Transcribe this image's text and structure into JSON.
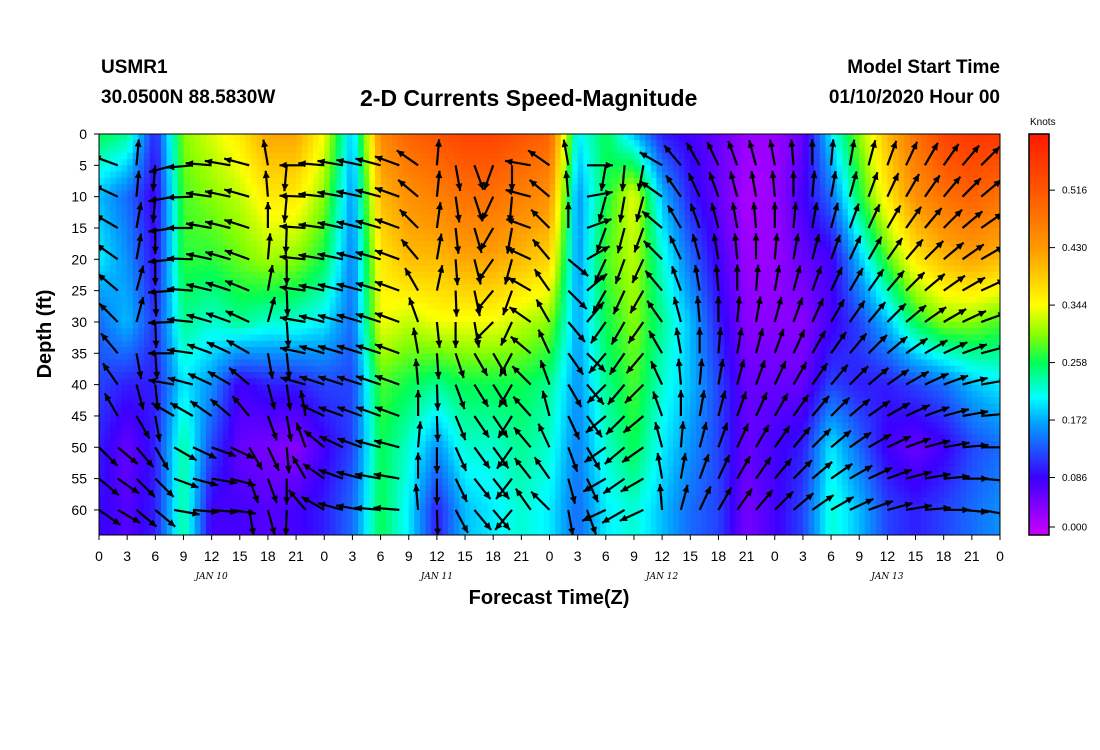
{
  "header": {
    "station": "USMR1",
    "coords": "30.0500N 88.5830W",
    "title": "2-D Currents Speed-Magnitude",
    "start_label": "Model Start Time",
    "start_value": "01/10/2020 Hour 00"
  },
  "chart_data": {
    "type": "heatmap",
    "title": "2-D Currents Speed-Magnitude",
    "xlabel": "Forecast Time(Z)",
    "ylabel": "Depth (ft)",
    "x_range_hours": [
      0,
      96
    ],
    "y_range_ft": [
      0,
      64
    ],
    "x_ticks": [
      {
        "h": 0,
        "label": "0"
      },
      {
        "h": 3,
        "label": "3"
      },
      {
        "h": 6,
        "label": "6"
      },
      {
        "h": 9,
        "label": "9"
      },
      {
        "h": 12,
        "label": "12"
      },
      {
        "h": 15,
        "label": "15"
      },
      {
        "h": 18,
        "label": "18"
      },
      {
        "h": 21,
        "label": "21"
      },
      {
        "h": 24,
        "label": "0"
      },
      {
        "h": 27,
        "label": "3"
      },
      {
        "h": 30,
        "label": "6"
      },
      {
        "h": 33,
        "label": "9"
      },
      {
        "h": 36,
        "label": "12"
      },
      {
        "h": 39,
        "label": "15"
      },
      {
        "h": 42,
        "label": "18"
      },
      {
        "h": 45,
        "label": "21"
      },
      {
        "h": 48,
        "label": "0"
      },
      {
        "h": 51,
        "label": "3"
      },
      {
        "h": 54,
        "label": "6"
      },
      {
        "h": 57,
        "label": "9"
      },
      {
        "h": 60,
        "label": "12"
      },
      {
        "h": 63,
        "label": "15"
      },
      {
        "h": 66,
        "label": "18"
      },
      {
        "h": 69,
        "label": "21"
      },
      {
        "h": 72,
        "label": "0"
      },
      {
        "h": 75,
        "label": "3"
      },
      {
        "h": 78,
        "label": "6"
      },
      {
        "h": 81,
        "label": "9"
      },
      {
        "h": 84,
        "label": "12"
      },
      {
        "h": 87,
        "label": "15"
      },
      {
        "h": 90,
        "label": "18"
      },
      {
        "h": 93,
        "label": "21"
      },
      {
        "h": 96,
        "label": "0"
      }
    ],
    "day_labels": [
      {
        "h": 12,
        "label": "JAN 10"
      },
      {
        "h": 36,
        "label": "JAN 11"
      },
      {
        "h": 60,
        "label": "JAN 12"
      },
      {
        "h": 84,
        "label": "JAN 13"
      }
    ],
    "y_ticks": [
      0,
      5,
      10,
      15,
      20,
      25,
      30,
      35,
      40,
      45,
      50,
      55,
      60
    ],
    "colorbar": {
      "unit": "Knots",
      "min": 0.0,
      "max": 0.6,
      "tick_values": [
        0.0,
        0.086,
        0.172,
        0.258,
        0.344,
        0.43,
        0.516
      ],
      "tick_labels": [
        "0.000",
        "0.086",
        "0.172",
        "0.258",
        "0.344",
        "0.430",
        "0.516"
      ]
    },
    "field": {
      "time_hours": [
        0,
        3,
        6,
        9,
        12,
        15,
        18,
        21,
        24,
        27,
        30,
        33,
        36,
        39,
        42,
        45,
        48,
        51,
        54,
        57,
        60,
        63,
        66,
        69,
        72,
        75,
        78,
        81,
        84,
        87,
        90,
        93,
        96
      ],
      "depths_ft": [
        0,
        10,
        20,
        30,
        40,
        50,
        60
      ],
      "speed_knots": [
        [
          0.26,
          0.18,
          0.2,
          0.14,
          0.12,
          0.1,
          0.09
        ],
        [
          0.24,
          0.14,
          0.16,
          0.18,
          0.1,
          0.06,
          0.07
        ],
        [
          0.1,
          0.08,
          0.09,
          0.11,
          0.1,
          0.1,
          0.1
        ],
        [
          0.3,
          0.28,
          0.27,
          0.24,
          0.2,
          0.24,
          0.24
        ],
        [
          0.33,
          0.3,
          0.27,
          0.22,
          0.16,
          0.12,
          0.08
        ],
        [
          0.36,
          0.32,
          0.29,
          0.24,
          0.08,
          0.06,
          0.08
        ],
        [
          0.42,
          0.36,
          0.31,
          0.22,
          0.1,
          0.05,
          0.07
        ],
        [
          0.42,
          0.36,
          0.3,
          0.22,
          0.1,
          0.04,
          0.08
        ],
        [
          0.34,
          0.3,
          0.26,
          0.2,
          0.12,
          0.08,
          0.1
        ],
        [
          0.18,
          0.16,
          0.15,
          0.14,
          0.12,
          0.12,
          0.14
        ],
        [
          0.45,
          0.4,
          0.36,
          0.34,
          0.28,
          0.26,
          0.26
        ],
        [
          0.5,
          0.44,
          0.4,
          0.32,
          0.26,
          0.22,
          0.2
        ],
        [
          0.52,
          0.46,
          0.4,
          0.34,
          0.24,
          0.16,
          0.1
        ],
        [
          0.54,
          0.48,
          0.42,
          0.34,
          0.26,
          0.22,
          0.18
        ],
        [
          0.54,
          0.48,
          0.42,
          0.34,
          0.26,
          0.22,
          0.2
        ],
        [
          0.52,
          0.46,
          0.4,
          0.32,
          0.26,
          0.24,
          0.22
        ],
        [
          0.5,
          0.44,
          0.38,
          0.3,
          0.24,
          0.22,
          0.2
        ],
        [
          0.2,
          0.16,
          0.16,
          0.17,
          0.16,
          0.15,
          0.14
        ],
        [
          0.26,
          0.26,
          0.28,
          0.26,
          0.24,
          0.22,
          0.2
        ],
        [
          0.18,
          0.34,
          0.32,
          0.3,
          0.28,
          0.26,
          0.22
        ],
        [
          0.1,
          0.18,
          0.22,
          0.24,
          0.22,
          0.2,
          0.18
        ],
        [
          0.08,
          0.1,
          0.14,
          0.18,
          0.18,
          0.16,
          0.14
        ],
        [
          0.06,
          0.06,
          0.08,
          0.1,
          0.12,
          0.12,
          0.12
        ],
        [
          0.03,
          0.02,
          0.03,
          0.04,
          0.06,
          0.06,
          0.05
        ],
        [
          0.03,
          0.03,
          0.03,
          0.04,
          0.06,
          0.08,
          0.08
        ],
        [
          0.06,
          0.08,
          0.06,
          0.04,
          0.06,
          0.1,
          0.12
        ],
        [
          0.2,
          0.14,
          0.08,
          0.08,
          0.12,
          0.2,
          0.22
        ],
        [
          0.3,
          0.26,
          0.18,
          0.12,
          0.1,
          0.14,
          0.18
        ],
        [
          0.4,
          0.36,
          0.28,
          0.18,
          0.1,
          0.08,
          0.12
        ],
        [
          0.48,
          0.44,
          0.36,
          0.26,
          0.12,
          0.06,
          0.1
        ],
        [
          0.54,
          0.48,
          0.4,
          0.3,
          0.14,
          0.08,
          0.12
        ],
        [
          0.56,
          0.5,
          0.42,
          0.3,
          0.18,
          0.12,
          0.14
        ],
        [
          0.56,
          0.48,
          0.4,
          0.28,
          0.2,
          0.14,
          0.16
        ]
      ]
    },
    "vectors": {
      "time_hours": [
        0,
        2,
        4,
        6,
        8,
        10,
        12,
        14,
        16,
        18,
        20,
        22,
        24,
        26,
        28,
        30,
        32,
        34,
        36,
        38,
        40,
        42,
        44,
        46,
        48,
        50,
        52,
        54,
        56,
        58,
        60,
        62,
        64,
        66,
        68,
        70,
        72,
        74,
        76,
        78,
        80,
        82,
        84,
        86,
        88,
        90,
        92,
        94,
        96
      ],
      "depths_ft": [
        5,
        10,
        15,
        20,
        25,
        30,
        35,
        40,
        45,
        50,
        55,
        60
      ],
      "direction_deg_note": "Arrow direction in degrees, 0 = pointing right (east), 90 = pointing down on the plot",
      "direction_deg": [
        [
          215,
          220,
          225,
          230,
          235,
          240,
          245,
          250,
          255,
          45,
          40,
          35
        ],
        [
          200,
          205,
          210,
          215,
          220,
          225,
          230,
          235,
          240,
          40,
          35,
          30
        ],
        [
          275,
          275,
          280,
          280,
          285,
          285,
          80,
          75,
          60,
          50,
          45,
          40
        ],
        [
          95,
          95,
          90,
          90,
          88,
          88,
          86,
          84,
          80,
          60,
          45,
          40
        ],
        [
          165,
          170,
          172,
          174,
          176,
          178,
          180,
          190,
          210,
          30,
          20,
          10
        ],
        [
          175,
          178,
          180,
          182,
          184,
          186,
          188,
          195,
          210,
          25,
          15,
          5
        ],
        [
          185,
          188,
          190,
          192,
          194,
          196,
          200,
          205,
          215,
          20,
          10,
          5
        ],
        [
          190,
          192,
          194,
          196,
          198,
          200,
          205,
          210,
          220,
          25,
          15,
          8
        ],
        [
          195,
          196,
          198,
          200,
          202,
          205,
          210,
          220,
          230,
          60,
          70,
          80
        ],
        [
          260,
          265,
          270,
          275,
          280,
          285,
          80,
          75,
          70,
          65,
          70,
          75
        ],
        [
          95,
          95,
          92,
          90,
          88,
          86,
          84,
          82,
          80,
          85,
          90,
          92
        ],
        [
          180,
          182,
          184,
          186,
          188,
          190,
          192,
          196,
          260,
          250,
          240,
          230
        ],
        [
          185,
          186,
          188,
          190,
          192,
          194,
          196,
          198,
          205,
          220,
          215,
          210
        ],
        [
          190,
          190,
          192,
          192,
          194,
          195,
          196,
          198,
          200,
          205,
          200,
          195
        ],
        [
          192,
          192,
          194,
          194,
          195,
          196,
          197,
          198,
          200,
          200,
          195,
          190
        ],
        [
          195,
          195,
          196,
          196,
          197,
          198,
          198,
          199,
          200,
          195,
          190,
          185
        ],
        [
          200,
          200,
          200,
          200,
          200,
          200,
          200,
          200,
          200,
          195,
          190,
          185
        ],
        [
          215,
          220,
          225,
          230,
          240,
          250,
          260,
          265,
          270,
          275,
          270,
          265
        ],
        [
          275,
          276,
          278,
          280,
          282,
          84,
          86,
          88,
          88,
          90,
          90,
          88
        ],
        [
          80,
          82,
          84,
          86,
          88,
          90,
          72,
          70,
          68,
          66,
          64,
          62
        ],
        [
          70,
          72,
          74,
          76,
          78,
          80,
          60,
          58,
          56,
          54,
          52,
          50
        ],
        [
          110,
          115,
          120,
          125,
          130,
          135,
          60,
          58,
          56,
          54,
          52,
          50
        ],
        [
          90,
          95,
          100,
          105,
          110,
          115,
          118,
          120,
          122,
          125,
          128,
          130
        ],
        [
          190,
          195,
          200,
          205,
          210,
          215,
          220,
          225,
          228,
          230,
          232,
          235
        ],
        [
          215,
          220,
          225,
          230,
          235,
          240,
          245,
          250,
          255,
          245,
          235,
          225
        ],
        [
          260,
          265,
          270,
          40,
          45,
          50,
          55,
          60,
          65,
          70,
          75,
          80
        ],
        [
          0,
          350,
          340,
          330,
          320,
          310,
          45,
          50,
          55,
          60,
          65,
          70
        ],
        [
          100,
          105,
          110,
          115,
          120,
          125,
          130,
          135,
          140,
          145,
          150,
          155
        ],
        [
          95,
          100,
          105,
          110,
          115,
          120,
          125,
          130,
          135,
          140,
          145,
          150
        ],
        [
          100,
          105,
          110,
          115,
          120,
          125,
          130,
          135,
          140,
          145,
          150,
          155
        ],
        [
          210,
          215,
          220,
          225,
          230,
          235,
          240,
          245,
          250,
          255,
          260,
          265
        ],
        [
          230,
          235,
          240,
          245,
          250,
          255,
          260,
          265,
          270,
          275,
          280,
          285
        ],
        [
          240,
          245,
          250,
          255,
          260,
          265,
          270,
          275,
          280,
          285,
          290,
          295
        ],
        [
          245,
          250,
          255,
          260,
          265,
          270,
          275,
          280,
          285,
          290,
          295,
          300
        ],
        [
          250,
          255,
          260,
          265,
          270,
          275,
          280,
          285,
          290,
          295,
          300,
          305
        ],
        [
          255,
          260,
          265,
          270,
          275,
          280,
          285,
          290,
          295,
          300,
          305,
          310
        ],
        [
          260,
          265,
          270,
          275,
          280,
          285,
          290,
          295,
          300,
          305,
          310,
          315
        ],
        [
          265,
          270,
          275,
          280,
          285,
          290,
          295,
          300,
          305,
          310,
          315,
          320
        ],
        [
          270,
          275,
          280,
          285,
          290,
          295,
          300,
          305,
          310,
          315,
          320,
          325
        ],
        [
          275,
          280,
          285,
          290,
          295,
          300,
          305,
          310,
          315,
          320,
          325,
          330
        ],
        [
          280,
          285,
          290,
          295,
          300,
          305,
          310,
          315,
          320,
          325,
          330,
          335
        ],
        [
          285,
          290,
          295,
          300,
          305,
          310,
          315,
          320,
          325,
          330,
          335,
          340
        ],
        [
          290,
          295,
          300,
          305,
          310,
          315,
          320,
          325,
          330,
          335,
          340,
          345
        ],
        [
          295,
          300,
          305,
          310,
          315,
          320,
          325,
          330,
          335,
          340,
          345,
          350
        ],
        [
          300,
          305,
          310,
          315,
          320,
          325,
          330,
          335,
          340,
          345,
          350,
          355
        ],
        [
          305,
          310,
          315,
          320,
          325,
          330,
          335,
          340,
          345,
          350,
          355,
          0
        ],
        [
          310,
          315,
          320,
          325,
          330,
          335,
          340,
          345,
          350,
          355,
          0,
          5
        ],
        [
          315,
          320,
          325,
          330,
          335,
          340,
          345,
          350,
          355,
          0,
          5,
          10
        ],
        [
          320,
          325,
          330,
          335,
          340,
          345,
          350,
          355,
          0,
          5,
          10,
          15
        ]
      ]
    }
  }
}
